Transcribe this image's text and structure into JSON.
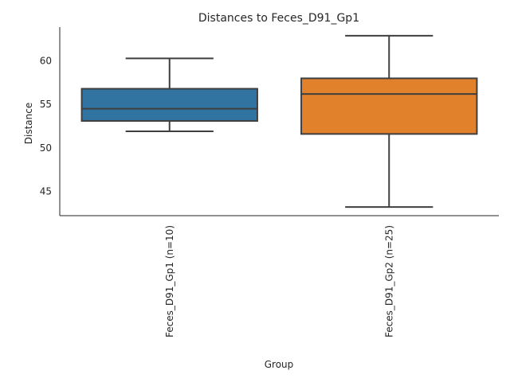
{
  "chart_data": {
    "type": "box",
    "title": "Distances to Feces_D91_Gp1",
    "xlabel": "Group",
    "ylabel": "Distance",
    "ylim": [
      42.2,
      63.9
    ],
    "yticks": [
      45,
      50,
      55,
      60
    ],
    "grid": false,
    "categories": [
      "Feces_D91_Gp1 (n=10)",
      "Feces_D91_Gp2 (n=25)"
    ],
    "boxes": [
      {
        "category": "Feces_D91_Gp1 (n=10)",
        "whislo": 51.9,
        "q1": 53.1,
        "med": 54.5,
        "q3": 56.8,
        "whishi": 60.3,
        "color": "#3274a1"
      },
      {
        "category": "Feces_D91_Gp2 (n=25)",
        "whislo": 43.2,
        "q1": 51.6,
        "med": 56.2,
        "q3": 58.0,
        "whishi": 62.9,
        "color": "#e1812c"
      }
    ]
  }
}
